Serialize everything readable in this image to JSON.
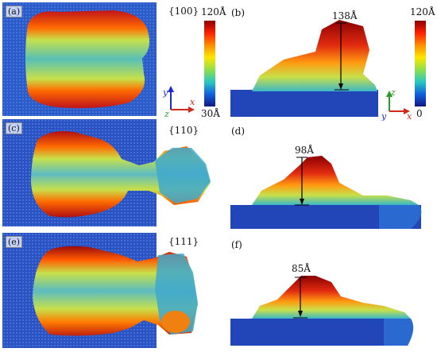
{
  "panels": {
    "a": {
      "label": "(a)",
      "orientation": "{100}"
    },
    "b": {
      "label": "(b)",
      "height": "138Å"
    },
    "c": {
      "label": "(c)",
      "orientation": "{110}"
    },
    "d": {
      "label": "(d)",
      "height": "98Å"
    },
    "e": {
      "label": "(e)",
      "orientation": "{111}"
    },
    "f": {
      "label": "(f)",
      "height": "85Å"
    }
  },
  "colorbar_left": {
    "max": "120Å",
    "min": "30Å"
  },
  "colorbar_right": {
    "max": "120Å",
    "min": "0"
  },
  "axes_top_view": {
    "y": "y",
    "x": "x",
    "z": "z"
  },
  "axes_side_view": {
    "z": "z",
    "y": "y",
    "x": "x"
  }
}
